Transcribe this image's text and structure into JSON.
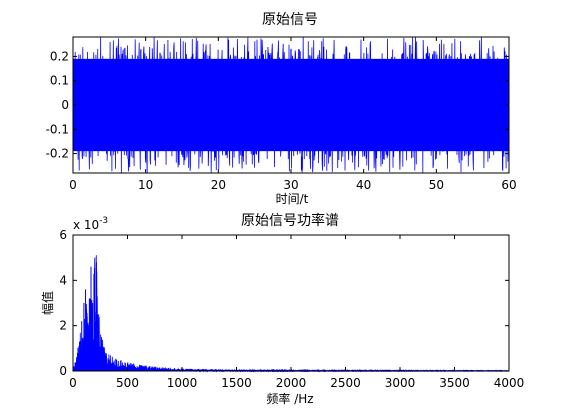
{
  "chart_data": [
    {
      "type": "line",
      "title": "原始信号",
      "xlabel": "时间/t",
      "ylabel": "",
      "xlim": [
        0,
        60
      ],
      "ylim": [
        -0.28,
        0.28
      ],
      "x_ticks": [
        "0",
        "10",
        "20",
        "30",
        "40",
        "50",
        "60"
      ],
      "y_ticks": [
        "-0.2",
        "-0.1",
        "0",
        "0.1",
        "0.2"
      ],
      "series": [
        {
          "color": "#0000ff",
          "signal": "dense noise filling approximately -0.28 to 0.28 over 0 to 60 s"
        }
      ],
      "grid": false
    },
    {
      "type": "line",
      "title": "原始信号功率谱",
      "xlabel": "频率 /Hz",
      "ylabel": "幅值",
      "multiplier": "x 10",
      "multiplier_exp": "-3",
      "xlim": [
        0,
        4000
      ],
      "ylim": [
        0,
        6
      ],
      "x_ticks": [
        "0",
        "500",
        "1000",
        "1500",
        "2000",
        "2500",
        "3000",
        "3500",
        "4000"
      ],
      "y_ticks": [
        "0",
        "2",
        "4",
        "6"
      ],
      "series": [
        {
          "color": "#0000ff",
          "peaks": [
            {
              "x": 60,
              "y": 1.3
            },
            {
              "x": 80,
              "y": 2.2
            },
            {
              "x": 100,
              "y": 3.0
            },
            {
              "x": 115,
              "y": 3.6
            },
            {
              "x": 130,
              "y": 2.4
            },
            {
              "x": 150,
              "y": 3.2
            },
            {
              "x": 165,
              "y": 4.6
            },
            {
              "x": 180,
              "y": 3.0
            },
            {
              "x": 200,
              "y": 5.0
            },
            {
              "x": 215,
              "y": 4.8
            },
            {
              "x": 235,
              "y": 2.5
            },
            {
              "x": 260,
              "y": 1.5
            },
            {
              "x": 300,
              "y": 0.8
            },
            {
              "x": 400,
              "y": 0.5
            },
            {
              "x": 500,
              "y": 0.35
            },
            {
              "x": 700,
              "y": 0.2
            },
            {
              "x": 1000,
              "y": 0.1
            },
            {
              "x": 1500,
              "y": 0.05
            },
            {
              "x": 2000,
              "y": 0.03
            },
            {
              "x": 4000,
              "y": 0.02
            }
          ]
        }
      ],
      "grid": false
    }
  ]
}
